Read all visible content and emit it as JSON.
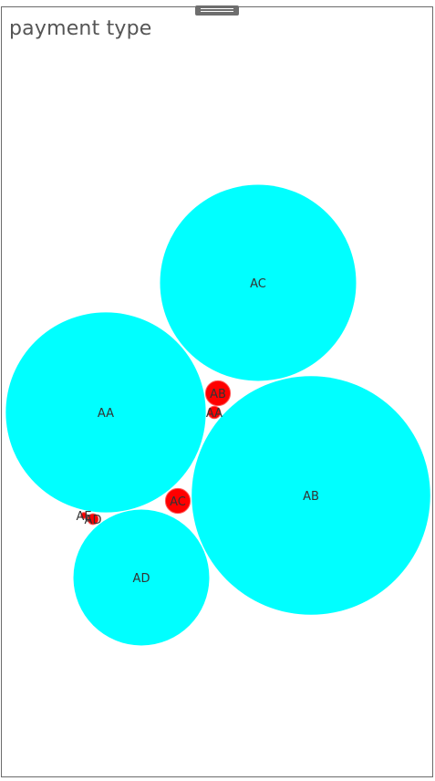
{
  "title": "payment type",
  "chart_data": {
    "type": "bubble",
    "title": "payment type",
    "colors": {
      "large": "#00ffff",
      "small": "#ff0000",
      "small_stroke": "#ff5a5a"
    },
    "bubbles": [
      {
        "label": "AC",
        "value": 100,
        "group": "large"
      },
      {
        "label": "AA",
        "value": 104,
        "group": "large"
      },
      {
        "label": "AB",
        "value": 148,
        "group": "large"
      },
      {
        "label": "AD",
        "value": 48,
        "group": "large"
      },
      {
        "label": "AB",
        "value": 1.6,
        "group": "small"
      },
      {
        "label": "AA",
        "value": 0.4,
        "group": "small"
      },
      {
        "label": "AC",
        "value": 1.6,
        "group": "small"
      },
      {
        "label": "AE",
        "value": 0.1,
        "group": "small"
      },
      {
        "label": "AD",
        "value": 0.3,
        "group": "small"
      }
    ]
  }
}
